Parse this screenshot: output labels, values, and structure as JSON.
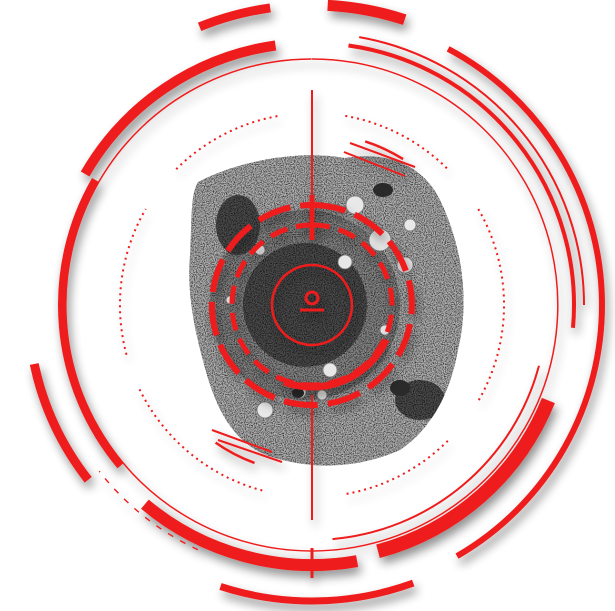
{
  "colors": {
    "accent": "#ee1c1c",
    "accent_dark": "#c41212",
    "background": "#ffffff",
    "tissue_light": "#b4b4b4",
    "tissue_mid": "#8a8a8a",
    "tissue_dark": "#4d4d4d",
    "vacuole": "#e8e8e8",
    "inclusion": "#2a2a2a"
  },
  "image": {
    "subject": "cell-micrograph",
    "overlay": "targeting-reticle"
  }
}
